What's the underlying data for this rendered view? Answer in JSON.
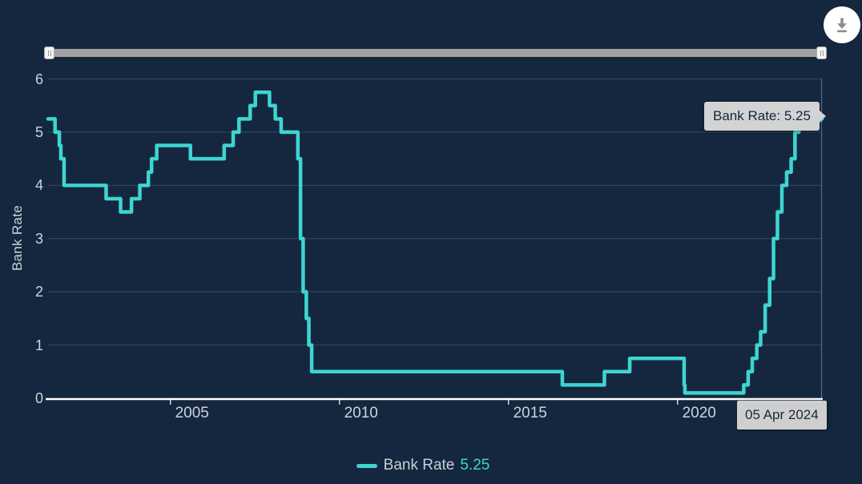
{
  "page": {
    "background": "#15273E",
    "accent": "#3DD5D2",
    "grid_color": "#37495E",
    "axis_text_color": "#CBD3DC"
  },
  "controls": {
    "download_button": {
      "icon": "download-icon",
      "background": "#FFFFFF",
      "glyph_color": "#8D8D8D"
    },
    "range_slider": {
      "track_color": "#A2A2A2",
      "full_range_selected": true
    }
  },
  "chart": {
    "y_axis": {
      "title": "Bank Rate",
      "tick_labels": [
        "6",
        "5",
        "4",
        "3",
        "2",
        "1",
        "0"
      ]
    },
    "x_axis": {
      "tick_labels": [
        "2005",
        "2010",
        "2015",
        "2020"
      ]
    },
    "tooltip_text": "Bank Rate: 5.25",
    "selected_date_label": "05 Apr 2024",
    "legend": {
      "label": "Bank Rate",
      "value": "5.25"
    }
  },
  "chart_data": {
    "type": "line",
    "step": "left",
    "title": "",
    "xlabel": "",
    "ylabel": "Bank Rate",
    "ylim": [
      0,
      6
    ],
    "y_ticks": [
      0,
      1,
      2,
      3,
      4,
      5,
      6
    ],
    "x_ticks_years": [
      2005,
      2010,
      2015,
      2020
    ],
    "x_range": [
      "2001-05-10",
      "2024-04-05"
    ],
    "grid": true,
    "legend_position": "bottom-center",
    "series": [
      {
        "name": "Bank Rate",
        "current_value": 5.25,
        "unit": "percent",
        "line_color": "#3DD5D2",
        "points": [
          [
            "2001-05-10",
            5.25
          ],
          [
            "2001-08-02",
            5.0
          ],
          [
            "2001-09-18",
            4.75
          ],
          [
            "2001-10-04",
            4.5
          ],
          [
            "2001-11-08",
            4.0
          ],
          [
            "2003-02-06",
            3.75
          ],
          [
            "2003-07-10",
            3.5
          ],
          [
            "2003-11-06",
            3.75
          ],
          [
            "2004-02-05",
            4.0
          ],
          [
            "2004-05-06",
            4.25
          ],
          [
            "2004-06-10",
            4.5
          ],
          [
            "2004-08-05",
            4.75
          ],
          [
            "2005-08-04",
            4.5
          ],
          [
            "2006-08-03",
            4.75
          ],
          [
            "2006-11-09",
            5.0
          ],
          [
            "2007-01-11",
            5.25
          ],
          [
            "2007-05-10",
            5.5
          ],
          [
            "2007-07-05",
            5.75
          ],
          [
            "2007-12-06",
            5.5
          ],
          [
            "2008-02-07",
            5.25
          ],
          [
            "2008-04-10",
            5.0
          ],
          [
            "2008-10-08",
            4.5
          ],
          [
            "2008-11-06",
            3.0
          ],
          [
            "2008-12-04",
            2.0
          ],
          [
            "2009-01-08",
            1.5
          ],
          [
            "2009-02-05",
            1.0
          ],
          [
            "2009-03-05",
            0.5
          ],
          [
            "2016-08-04",
            0.25
          ],
          [
            "2017-11-02",
            0.5
          ],
          [
            "2018-08-02",
            0.75
          ],
          [
            "2020-03-11",
            0.25
          ],
          [
            "2020-03-19",
            0.1
          ],
          [
            "2021-12-16",
            0.25
          ],
          [
            "2022-02-03",
            0.5
          ],
          [
            "2022-03-17",
            0.75
          ],
          [
            "2022-05-05",
            1.0
          ],
          [
            "2022-06-16",
            1.25
          ],
          [
            "2022-08-04",
            1.75
          ],
          [
            "2022-09-22",
            2.25
          ],
          [
            "2022-11-03",
            3.0
          ],
          [
            "2022-12-15",
            3.5
          ],
          [
            "2023-02-02",
            4.0
          ],
          [
            "2023-03-23",
            4.25
          ],
          [
            "2023-05-11",
            4.5
          ],
          [
            "2023-06-22",
            5.0
          ],
          [
            "2023-08-03",
            5.25
          ],
          [
            "2024-04-05",
            5.25
          ]
        ]
      }
    ]
  }
}
